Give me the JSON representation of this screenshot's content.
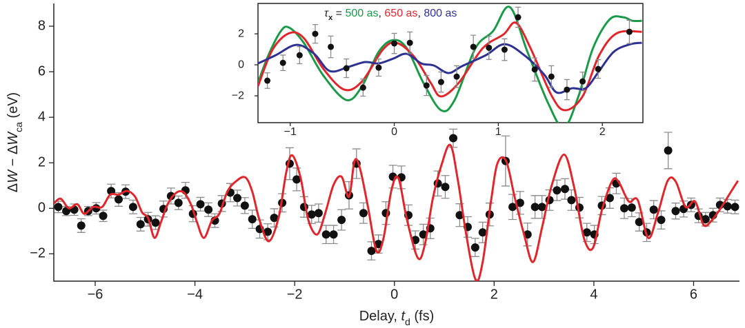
{
  "chart_data": [
    {
      "type": "scatter",
      "xlabel": [
        {
          "text": "Delay, "
        },
        {
          "text": "t",
          "style": "italic"
        },
        {
          "text": "d",
          "style": "sub"
        },
        {
          "text": " (fs)"
        }
      ],
      "ylabel": [
        {
          "text": "Δ"
        },
        {
          "text": "W",
          "style": "italic"
        },
        {
          "text": " − Δ"
        },
        {
          "text": "W",
          "style": "italic"
        },
        {
          "text": "ca",
          "style": "sub"
        },
        {
          "text": " (eV)"
        }
      ],
      "xlim": [
        -6.83,
        6.92
      ],
      "ylim": [
        -3.2,
        9
      ],
      "xticks": [
        {
          "value": -6,
          "label": "−6"
        },
        {
          "value": -4,
          "label": "−4"
        },
        {
          "value": -2,
          "label": "−2"
        },
        0,
        2,
        4,
        6
      ],
      "yticks": [
        {
          "value": -2,
          "label": "−2"
        },
        0,
        2,
        4,
        6,
        8
      ],
      "points": {
        "color": "#111111",
        "error_color": "#8a8a8a",
        "x": [
          -6.74,
          -6.58,
          -6.42,
          -6.28,
          -6.14,
          -5.98,
          -5.84,
          -5.68,
          -5.53,
          -5.39,
          -5.24,
          -5.09,
          -4.94,
          -4.79,
          -4.63,
          -4.48,
          -4.33,
          -4.19,
          -4.04,
          -3.89,
          -3.73,
          -3.6,
          -3.46,
          -3.29,
          -3.15,
          -3.0,
          -2.85,
          -2.7,
          -2.54,
          -2.41,
          -2.25,
          -2.1,
          -1.96,
          -1.81,
          -1.66,
          -1.52,
          -1.37,
          -1.22,
          -1.06,
          -0.91,
          -0.76,
          -0.62,
          -0.46,
          -0.32,
          -0.17,
          -0.03,
          0.14,
          0.28,
          0.42,
          0.58,
          0.72,
          0.87,
          1.02,
          1.18,
          1.31,
          1.47,
          1.62,
          1.77,
          1.91,
          2.23,
          2.37,
          2.52,
          2.67,
          2.82,
          2.96,
          3.11,
          3.26,
          3.42,
          3.55,
          3.71,
          3.86,
          4.01,
          4.16,
          4.32,
          4.45,
          4.61,
          4.76,
          4.91,
          5.06,
          5.2,
          5.35,
          5.49,
          5.64,
          5.8,
          5.95,
          6.1,
          6.24,
          6.39,
          6.53,
          6.68,
          6.83
        ],
        "values": [
          0.06,
          -0.12,
          -0.06,
          -0.76,
          -0.12,
          0,
          -0.33,
          0.76,
          0.39,
          0.73,
          0.06,
          -0.7,
          -0.48,
          -0.63,
          -0.03,
          0.54,
          0.24,
          0.79,
          -0.24,
          0.18,
          -0.06,
          -0.54,
          0.21,
          0.69,
          0.45,
          0.12,
          -0.48,
          -0.91,
          -1.03,
          -0.42,
          0.24,
          1.96,
          1.27,
          0.06,
          -0.27,
          -0.21,
          -1.15,
          -1.15,
          -0.51,
          0.57,
          1.96,
          -0.21,
          -1.87,
          -1.57,
          -0.21,
          1.39,
          1.36,
          -0.3,
          -1.39,
          -1.15,
          -0.88,
          1.09,
          0.94,
          3.08,
          -0.3,
          -0.82,
          -1.72,
          -1.06,
          -0.27,
          2.08,
          0.06,
          0.24,
          -1.15,
          0.06,
          0.06,
          0.36,
          0.79,
          0.85,
          0.36,
          0.03,
          -1.06,
          -1.15,
          0.12,
          0.45,
          1.09,
          0,
          0.03,
          -0.6,
          -1.06,
          -0.06,
          -0.51,
          2.54,
          -0.12,
          -0.03,
          0.15,
          -0.33,
          -0.48,
          -0.3,
          0.15,
          0.09,
          0.06
        ],
        "errors": [
          0.25,
          0.2,
          0.25,
          0.3,
          0.2,
          0.25,
          0.25,
          0.3,
          0.3,
          0.3,
          0.3,
          0.3,
          0.3,
          0.3,
          0.35,
          0.35,
          0.3,
          0.35,
          0.35,
          0.3,
          0.3,
          0.3,
          0.35,
          0.4,
          0.35,
          0.35,
          0.4,
          0.4,
          0.35,
          0.4,
          0.4,
          0.7,
          0.5,
          0.45,
          0.4,
          0.4,
          0.4,
          0.4,
          0.45,
          0.6,
          0.65,
          0.45,
          0.4,
          0.4,
          0.5,
          0.5,
          0.5,
          0.45,
          0.4,
          0.45,
          0.45,
          0.55,
          0.5,
          0.4,
          0.5,
          0.45,
          0.4,
          0.45,
          0.5,
          1.1,
          0.55,
          0.5,
          0.5,
          0.5,
          0.5,
          0.45,
          0.45,
          0.45,
          0.45,
          0.45,
          0.4,
          0.4,
          0.4,
          0.45,
          0.45,
          0.45,
          0.4,
          0.4,
          0.4,
          0.4,
          0.4,
          0.8,
          0.35,
          0.35,
          0.3,
          0.3,
          0.3,
          0.3,
          0.3,
          0.3,
          0.3
        ]
      },
      "fit": {
        "color": "#e0262b",
        "x": [
          -6.83,
          -6.69,
          -6.53,
          -6.36,
          -6.22,
          -6.04,
          -5.86,
          -5.7,
          -5.53,
          -5.36,
          -5.2,
          -5.06,
          -4.94,
          -4.81,
          -4.68,
          -4.54,
          -4.37,
          -4.22,
          -4.07,
          -3.96,
          -3.82,
          -3.66,
          -3.51,
          -3.35,
          -3.18,
          -2.99,
          -2.85,
          -2.71,
          -2.52,
          -2.32,
          -2.17,
          -2.05,
          -1.88,
          -1.73,
          -1.55,
          -1.39,
          -1.22,
          -1.06,
          -0.91,
          -0.8,
          -0.69,
          -0.53,
          -0.36,
          -0.22,
          -0.06,
          0.08,
          0.25,
          0.47,
          0.61,
          0.77,
          0.94,
          1.12,
          1.27,
          1.44,
          1.63,
          1.77,
          1.94,
          2.07,
          2.24,
          2.41,
          2.6,
          2.78,
          2.96,
          3.15,
          3.4,
          3.6,
          3.8,
          3.98,
          4.16,
          4.37,
          4.5,
          4.7,
          4.88,
          5.09,
          5.28,
          5.48,
          5.64,
          5.84,
          6.03,
          6.2,
          6.36,
          6.56,
          6.75,
          6.89
        ],
        "values": [
          0.21,
          0.42,
          0,
          0.18,
          -0.24,
          0.06,
          0.06,
          0.6,
          0.6,
          0.76,
          0.51,
          -0.18,
          -0.42,
          -1.3,
          -0.6,
          0.21,
          0.69,
          0.69,
          0.12,
          -0.6,
          -1.3,
          -0.54,
          -0.24,
          0.73,
          1.18,
          1.36,
          0.73,
          -0.48,
          -1.45,
          -0.39,
          1.57,
          2.33,
          1.33,
          -0.48,
          -1.15,
          -0.24,
          1.03,
          1.39,
          0.51,
          2.08,
          1.75,
          0.06,
          -1.87,
          -1.33,
          0.79,
          1.33,
          -0.48,
          -2.18,
          -1.6,
          0.42,
          1.87,
          2.78,
          1.27,
          -1.15,
          -3.14,
          -2.36,
          0.36,
          2.0,
          2.08,
          0.51,
          -1.15,
          -2.36,
          -0.85,
          0.97,
          2.36,
          0.97,
          -1.3,
          -1.75,
          -0.09,
          1.21,
          1.15,
          0.3,
          0.36,
          -1.3,
          -0.24,
          1.21,
          1.18,
          0.06,
          0.3,
          -0.73,
          -0.54,
          0.06,
          0.73,
          1.21
        ]
      }
    },
    {
      "type": "line",
      "xlim": [
        -1.31,
        2.39
      ],
      "ylim": [
        -3.73,
        3.96
      ],
      "xticks": [
        {
          "value": -1,
          "label": "−1"
        },
        0,
        1,
        2
      ],
      "yticks": [
        {
          "value": -2,
          "label": "−2"
        },
        0,
        2
      ],
      "legend": {
        "symbol": "τ",
        "subscript": "x",
        "equals": " = ",
        "separator": ", "
      },
      "series": [
        {
          "name": "500 as",
          "color": "#1a9a48",
          "x": [
            -1.31,
            -1.21,
            -1.09,
            -1.01,
            -0.87,
            -0.68,
            -0.46,
            -0.31,
            -0.15,
            -0.01,
            0.12,
            0.28,
            0.45,
            0.58,
            0.78,
            0.95,
            1.11,
            1.28,
            1.48,
            1.63,
            1.77,
            1.91,
            2.07,
            2.2,
            2.29,
            2.38
          ],
          "values": [
            -1.16,
            0.62,
            2.18,
            2.4,
            1.42,
            -0.71,
            -2.27,
            -1.38,
            0.84,
            1.6,
            1.07,
            -1.16,
            -2.93,
            -2.27,
            1.07,
            2.18,
            3.73,
            0.84,
            -2.49,
            -4.04,
            -2.04,
            1.07,
            2.93,
            3.07,
            2.84,
            2.84
          ]
        },
        {
          "name": "650 as",
          "color": "#e0262b",
          "x": [
            -1.31,
            -1.17,
            -1.01,
            -0.87,
            -0.68,
            -0.48,
            -0.31,
            -0.11,
            0.02,
            0.19,
            0.35,
            0.45,
            0.62,
            0.85,
            1.05,
            1.17,
            1.31,
            1.51,
            1.64,
            1.81,
            1.97,
            2.14,
            2.38
          ],
          "values": [
            -1.38,
            0.98,
            2.04,
            1.73,
            -0.27,
            -1.6,
            -1.07,
            0.98,
            1.42,
            0.53,
            -1.16,
            -2.04,
            -1.16,
            1.07,
            1.96,
            2.71,
            1.07,
            -1.96,
            -2.93,
            -2.04,
            0.62,
            2.04,
            2.13
          ]
        },
        {
          "name": "800 as",
          "color": "#2e3192",
          "x": [
            -1.31,
            -1.14,
            -0.94,
            -0.77,
            -0.62,
            -0.44,
            -0.28,
            -0.15,
            -0.01,
            0.12,
            0.26,
            0.38,
            0.52,
            0.65,
            0.88,
            1.06,
            1.25,
            1.44,
            1.56,
            1.71,
            1.84,
            1.96,
            2.11,
            2.27,
            2.38
          ],
          "values": [
            0.09,
            0.62,
            1.29,
            0.71,
            -0.4,
            -0.13,
            0.18,
            0.09,
            0.4,
            0.71,
            0.09,
            -0.04,
            -0.53,
            -0.09,
            0.62,
            1.33,
            0.62,
            -0.62,
            -1.78,
            -1.51,
            -1.51,
            -0.49,
            0.84,
            1.33,
            1.42
          ]
        }
      ],
      "points": {
        "color": "#111111",
        "error_color": "#8a8a8a",
        "x": [
          -1.22,
          -1.07,
          -0.91,
          -0.76,
          -0.61,
          -0.46,
          -0.3,
          -0.15,
          0,
          0.15,
          0.31,
          0.45,
          0.6,
          0.76,
          0.91,
          1.06,
          1.19,
          1.35,
          1.51,
          1.66,
          1.81,
          1.96,
          2.26
        ],
        "values": [
          -1.02,
          0.13,
          0.62,
          2.0,
          1.16,
          -0.22,
          -1.47,
          -0.18,
          1.38,
          1.42,
          -1.33,
          -1.11,
          -0.76,
          1.16,
          1.1,
          0.98,
          3.07,
          -0.3,
          -0.76,
          -1.6,
          -1.07,
          -0.27,
          2.13
        ],
        "errors": [
          0.5,
          0.5,
          0.55,
          0.6,
          0.7,
          0.6,
          0.55,
          0.55,
          0.65,
          0.7,
          0.65,
          0.65,
          0.7,
          0.75,
          0.75,
          0.7,
          0.65,
          0.75,
          0.7,
          0.65,
          0.6,
          0.6,
          0.75
        ]
      }
    }
  ]
}
